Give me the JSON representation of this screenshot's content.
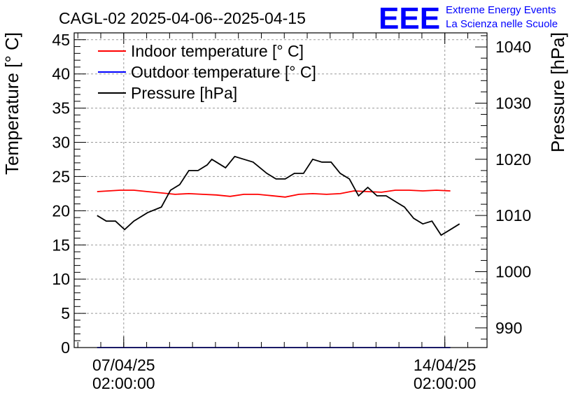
{
  "chart_data": {
    "type": "line",
    "title": "CAGL-02 2025-04-06--2025-04-15",
    "logo": {
      "text": "EEE",
      "line1": "Extreme Energy Events",
      "line2": "La Scienza nelle Scuole",
      "color": "#0000ff"
    },
    "ylabel": "Temperature [° C]",
    "y2label": "Pressure [hPa]",
    "ylim": [
      0,
      46
    ],
    "y2lim": [
      986.5,
      1042.5
    ],
    "yticks": [
      0,
      5,
      10,
      15,
      20,
      25,
      30,
      35,
      40,
      45
    ],
    "y2ticks": [
      990,
      1000,
      1010,
      1020,
      1030,
      1040
    ],
    "xlim_days": [
      6.0,
      15.0
    ],
    "xticks": [
      {
        "day": 7.08,
        "label1": "07/04/25",
        "label2": "02:00:00"
      },
      {
        "day": 14.08,
        "label1": "14/04/25",
        "label2": "02:00:00"
      }
    ],
    "grid": true,
    "legend_position": "top-left",
    "series": [
      {
        "name": "Indoor temperature [° C]",
        "color": "#ff0000",
        "axis": "left",
        "x": [
          6.5,
          7.0,
          7.3,
          7.6,
          7.9,
          8.2,
          8.5,
          8.8,
          9.1,
          9.4,
          9.7,
          10.0,
          10.3,
          10.6,
          10.9,
          11.2,
          11.5,
          11.8,
          12.1,
          12.4,
          12.7,
          13.0,
          13.3,
          13.6,
          13.9,
          14.2
        ],
        "y": [
          22.8,
          23.0,
          23.0,
          22.8,
          22.6,
          22.4,
          22.5,
          22.4,
          22.3,
          22.1,
          22.4,
          22.4,
          22.2,
          22.0,
          22.4,
          22.5,
          22.4,
          22.5,
          22.9,
          22.8,
          22.7,
          23.0,
          23.0,
          22.9,
          23.0,
          22.9
        ]
      },
      {
        "name": "Outdoor temperature [° C]",
        "color": "#0000ff",
        "axis": "left",
        "x": [
          6.5,
          14.2
        ],
        "y": [
          0.0,
          0.0
        ]
      },
      {
        "name": "Pressure [hPa]",
        "color": "#000000",
        "axis": "right",
        "x": [
          6.5,
          6.7,
          6.9,
          7.1,
          7.3,
          7.6,
          7.9,
          8.1,
          8.3,
          8.5,
          8.7,
          8.9,
          9.0,
          9.1,
          9.3,
          9.5,
          9.7,
          9.9,
          10.2,
          10.4,
          10.6,
          10.8,
          11.0,
          11.2,
          11.4,
          11.6,
          11.8,
          12.0,
          12.2,
          12.4,
          12.6,
          12.8,
          13.0,
          13.2,
          13.4,
          13.6,
          13.8,
          14.0,
          14.2,
          14.4
        ],
        "y": [
          1010.0,
          1009.0,
          1009.0,
          1007.5,
          1009.0,
          1010.5,
          1011.5,
          1014.5,
          1015.5,
          1018.0,
          1018.0,
          1019.0,
          1020.0,
          1019.5,
          1018.5,
          1020.5,
          1020.0,
          1019.5,
          1017.5,
          1016.5,
          1016.5,
          1017.5,
          1017.5,
          1020.0,
          1019.5,
          1019.5,
          1017.5,
          1016.5,
          1013.5,
          1015.0,
          1013.5,
          1013.5,
          1012.5,
          1011.5,
          1009.5,
          1008.5,
          1009.0,
          1006.5,
          1007.5,
          1008.5
        ]
      }
    ]
  }
}
